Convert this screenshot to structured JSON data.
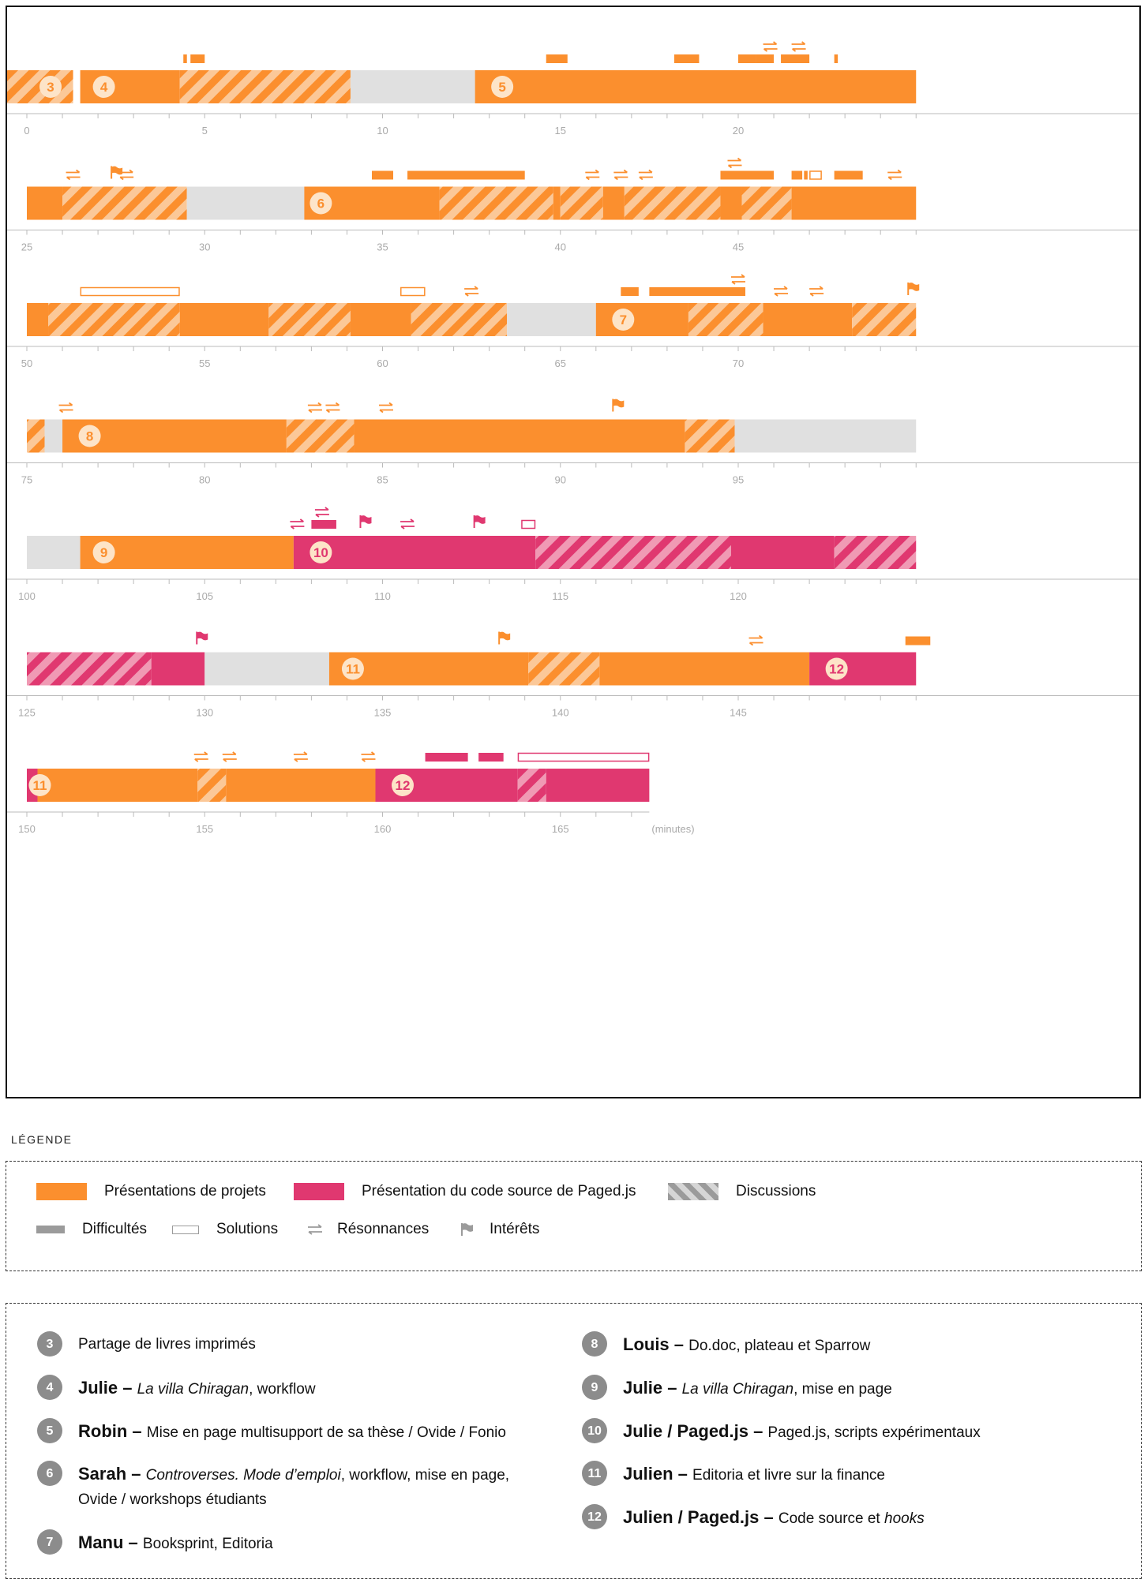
{
  "colors": {
    "orange": "#fb8f2e",
    "orange_stripe": "#fbc898",
    "pink": "#e03870",
    "pink_stripe": "#f09ab4",
    "gray": "#e0e0e0",
    "axis": "#bbbbbb",
    "legend_gray": "#9b9b9b"
  },
  "chart_data": {
    "type": "timeline",
    "x_unit_label": "(minutes)",
    "minutes_per_row": 25,
    "row_starts": [
      0,
      25,
      50,
      75,
      100,
      125,
      150
    ],
    "total_minutes": 167.5,
    "tick_labels_every": 5,
    "segments": [
      {
        "start": -0.8,
        "end": 1.3,
        "type": "discussion",
        "color": "orange"
      },
      {
        "start": 1.5,
        "end": 4.3,
        "type": "presentation",
        "color": "orange"
      },
      {
        "start": 4.3,
        "end": 9.1,
        "type": "discussion",
        "color": "orange"
      },
      {
        "start": 9.1,
        "end": 12.6,
        "type": "gap"
      },
      {
        "start": 12.6,
        "end": 25.0,
        "type": "presentation",
        "color": "orange"
      },
      {
        "start": 25.0,
        "end": 26.0,
        "type": "presentation",
        "color": "orange"
      },
      {
        "start": 26.0,
        "end": 29.5,
        "type": "discussion",
        "color": "orange"
      },
      {
        "start": 29.5,
        "end": 32.8,
        "type": "gap"
      },
      {
        "start": 32.8,
        "end": 36.6,
        "type": "presentation",
        "color": "orange"
      },
      {
        "start": 36.6,
        "end": 39.8,
        "type": "discussion",
        "color": "orange"
      },
      {
        "start": 39.8,
        "end": 40.0,
        "type": "presentation",
        "color": "orange"
      },
      {
        "start": 40.0,
        "end": 41.2,
        "type": "discussion",
        "color": "orange"
      },
      {
        "start": 41.2,
        "end": 41.8,
        "type": "presentation",
        "color": "orange"
      },
      {
        "start": 41.8,
        "end": 44.5,
        "type": "discussion",
        "color": "orange"
      },
      {
        "start": 44.5,
        "end": 45.1,
        "type": "presentation",
        "color": "orange"
      },
      {
        "start": 45.1,
        "end": 46.5,
        "type": "discussion",
        "color": "orange"
      },
      {
        "start": 46.5,
        "end": 50.0,
        "type": "presentation",
        "color": "orange"
      },
      {
        "start": 50.0,
        "end": 50.6,
        "type": "presentation",
        "color": "orange"
      },
      {
        "start": 50.6,
        "end": 54.3,
        "type": "discussion",
        "color": "orange"
      },
      {
        "start": 54.3,
        "end": 56.8,
        "type": "presentation",
        "color": "orange"
      },
      {
        "start": 56.8,
        "end": 59.1,
        "type": "discussion",
        "color": "orange"
      },
      {
        "start": 59.1,
        "end": 60.8,
        "type": "presentation",
        "color": "orange"
      },
      {
        "start": 60.8,
        "end": 63.5,
        "type": "discussion",
        "color": "orange"
      },
      {
        "start": 63.5,
        "end": 66.0,
        "type": "gap"
      },
      {
        "start": 66.0,
        "end": 68.6,
        "type": "presentation",
        "color": "orange"
      },
      {
        "start": 68.6,
        "end": 70.7,
        "type": "discussion",
        "color": "orange"
      },
      {
        "start": 70.7,
        "end": 73.2,
        "type": "presentation",
        "color": "orange"
      },
      {
        "start": 73.2,
        "end": 75.0,
        "type": "discussion",
        "color": "orange"
      },
      {
        "start": 75.0,
        "end": 75.5,
        "type": "discussion",
        "color": "orange"
      },
      {
        "start": 75.5,
        "end": 76.0,
        "type": "gap"
      },
      {
        "start": 76.0,
        "end": 82.3,
        "type": "presentation",
        "color": "orange"
      },
      {
        "start": 82.3,
        "end": 84.2,
        "type": "discussion",
        "color": "orange"
      },
      {
        "start": 84.2,
        "end": 93.5,
        "type": "presentation",
        "color": "orange"
      },
      {
        "start": 93.5,
        "end": 94.9,
        "type": "discussion",
        "color": "orange"
      },
      {
        "start": 94.9,
        "end": 100.0,
        "type": "gap"
      },
      {
        "start": 100.0,
        "end": 101.5,
        "type": "gap"
      },
      {
        "start": 101.5,
        "end": 107.5,
        "type": "presentation",
        "color": "orange"
      },
      {
        "start": 107.5,
        "end": 114.3,
        "type": "presentation",
        "color": "pink"
      },
      {
        "start": 114.3,
        "end": 119.8,
        "type": "discussion",
        "color": "pink"
      },
      {
        "start": 119.8,
        "end": 122.7,
        "type": "presentation",
        "color": "pink"
      },
      {
        "start": 122.7,
        "end": 125.0,
        "type": "discussion",
        "color": "pink"
      },
      {
        "start": 125.0,
        "end": 128.5,
        "type": "discussion",
        "color": "pink"
      },
      {
        "start": 128.5,
        "end": 130.0,
        "type": "presentation",
        "color": "pink"
      },
      {
        "start": 130.0,
        "end": 133.5,
        "type": "gap"
      },
      {
        "start": 133.5,
        "end": 139.1,
        "type": "presentation",
        "color": "orange"
      },
      {
        "start": 139.1,
        "end": 141.1,
        "type": "discussion",
        "color": "orange"
      },
      {
        "start": 141.1,
        "end": 147.0,
        "type": "presentation",
        "color": "orange"
      },
      {
        "start": 147.0,
        "end": 150.0,
        "type": "presentation",
        "color": "pink"
      },
      {
        "start": 150.0,
        "end": 150.3,
        "type": "presentation",
        "color": "pink"
      },
      {
        "start": 150.3,
        "end": 154.8,
        "type": "presentation",
        "color": "orange"
      },
      {
        "start": 154.8,
        "end": 155.6,
        "type": "discussion",
        "color": "orange"
      },
      {
        "start": 155.6,
        "end": 159.8,
        "type": "presentation",
        "color": "orange"
      },
      {
        "start": 159.8,
        "end": 163.8,
        "type": "presentation",
        "color": "pink"
      },
      {
        "start": 163.8,
        "end": 164.6,
        "type": "discussion",
        "color": "pink"
      },
      {
        "start": 164.6,
        "end": 167.5,
        "type": "presentation",
        "color": "pink"
      }
    ],
    "bubbles": [
      {
        "label": "3",
        "at": 0.4,
        "color": "orange"
      },
      {
        "label": "4",
        "at": 1.9,
        "color": "orange"
      },
      {
        "label": "5",
        "at": 13.1,
        "color": "orange"
      },
      {
        "label": "6",
        "at": 33.0,
        "color": "orange"
      },
      {
        "label": "7",
        "at": 66.5,
        "color": "orange"
      },
      {
        "label": "8",
        "at": 76.5,
        "color": "orange"
      },
      {
        "label": "9",
        "at": 101.9,
        "color": "orange"
      },
      {
        "label": "10",
        "at": 108.0,
        "color": "pink"
      },
      {
        "label": "11",
        "at": 133.9,
        "color": "orange"
      },
      {
        "label": "12",
        "at": 147.5,
        "color": "pink"
      },
      {
        "label": "11",
        "at": 150.1,
        "color": "orange"
      },
      {
        "label": "12",
        "at": 160.3,
        "color": "pink"
      }
    ],
    "markers": [
      {
        "kind": "difficulty",
        "start": 4.4,
        "end": 4.5,
        "color": "orange",
        "level": 0
      },
      {
        "kind": "difficulty",
        "start": 4.6,
        "end": 5.0,
        "color": "orange",
        "level": 0
      },
      {
        "kind": "difficulty",
        "start": 14.6,
        "end": 15.2,
        "color": "orange",
        "level": 0
      },
      {
        "kind": "difficulty",
        "start": 18.2,
        "end": 18.9,
        "color": "orange",
        "level": 0
      },
      {
        "kind": "difficulty",
        "start": 20.0,
        "end": 20.5,
        "color": "orange",
        "level": 0
      },
      {
        "kind": "difficulty",
        "start": 20.5,
        "end": 21.0,
        "color": "orange",
        "level": 0
      },
      {
        "kind": "resonance",
        "at": 20.9,
        "color": "orange",
        "level": 1
      },
      {
        "kind": "difficulty",
        "start": 21.2,
        "end": 22.0,
        "color": "orange",
        "level": 0
      },
      {
        "kind": "resonance",
        "at": 21.7,
        "color": "orange",
        "level": 1
      },
      {
        "kind": "difficulty",
        "start": 22.7,
        "end": 22.8,
        "color": "orange",
        "level": 0
      },
      {
        "kind": "resonance",
        "at": 26.3,
        "color": "orange",
        "level": 0
      },
      {
        "kind": "interest",
        "at": 27.4,
        "color": "orange",
        "level": 0
      },
      {
        "kind": "resonance",
        "at": 27.8,
        "color": "orange",
        "level": 0
      },
      {
        "kind": "difficulty",
        "start": 34.7,
        "end": 35.3,
        "color": "orange",
        "level": 0
      },
      {
        "kind": "difficulty",
        "start": 35.7,
        "end": 39.0,
        "color": "orange",
        "level": 0
      },
      {
        "kind": "resonance",
        "at": 40.9,
        "color": "orange",
        "level": 0
      },
      {
        "kind": "resonance",
        "at": 41.7,
        "color": "orange",
        "level": 0
      },
      {
        "kind": "resonance",
        "at": 42.4,
        "color": "orange",
        "level": 0
      },
      {
        "kind": "difficulty",
        "start": 44.5,
        "end": 46.0,
        "color": "orange",
        "level": 0
      },
      {
        "kind": "resonance",
        "at": 44.9,
        "color": "orange",
        "level": 1
      },
      {
        "kind": "difficulty",
        "start": 46.5,
        "end": 46.8,
        "color": "orange",
        "level": 0
      },
      {
        "kind": "difficulty",
        "start": 46.85,
        "end": 46.95,
        "color": "orange",
        "level": 0
      },
      {
        "kind": "solution",
        "start": 47.0,
        "end": 47.35,
        "color": "orange",
        "level": 0
      },
      {
        "kind": "difficulty",
        "start": 47.7,
        "end": 48.5,
        "color": "orange",
        "level": 0
      },
      {
        "kind": "resonance",
        "at": 49.4,
        "color": "orange",
        "level": 0
      },
      {
        "kind": "solution",
        "start": 51.5,
        "end": 54.3,
        "color": "orange",
        "level": 0
      },
      {
        "kind": "solution",
        "start": 60.5,
        "end": 61.2,
        "color": "orange",
        "level": 0
      },
      {
        "kind": "resonance",
        "at": 62.5,
        "color": "orange",
        "level": 0
      },
      {
        "kind": "difficulty",
        "start": 66.7,
        "end": 67.2,
        "color": "orange",
        "level": 0
      },
      {
        "kind": "difficulty",
        "start": 67.5,
        "end": 70.2,
        "color": "orange",
        "level": 0
      },
      {
        "kind": "resonance",
        "at": 70.0,
        "color": "orange",
        "level": 1
      },
      {
        "kind": "resonance",
        "at": 71.2,
        "color": "orange",
        "level": 0
      },
      {
        "kind": "resonance",
        "at": 72.2,
        "color": "orange",
        "level": 0
      },
      {
        "kind": "interest",
        "at": 74.8,
        "color": "orange",
        "level": 0
      },
      {
        "kind": "resonance",
        "at": 76.1,
        "color": "orange",
        "level": 0
      },
      {
        "kind": "resonance",
        "at": 83.1,
        "color": "orange",
        "level": 0
      },
      {
        "kind": "resonance",
        "at": 83.6,
        "color": "orange",
        "level": 0
      },
      {
        "kind": "resonance",
        "at": 85.1,
        "color": "orange",
        "level": 0
      },
      {
        "kind": "interest",
        "at": 91.5,
        "color": "orange",
        "level": 0
      },
      {
        "kind": "resonance",
        "at": 107.6,
        "color": "pink",
        "level": 0
      },
      {
        "kind": "resonance",
        "at": 108.3,
        "color": "pink",
        "level": 1
      },
      {
        "kind": "difficulty",
        "start": 108.0,
        "end": 108.7,
        "color": "pink",
        "level": 0
      },
      {
        "kind": "interest",
        "at": 109.4,
        "color": "pink",
        "level": 0
      },
      {
        "kind": "resonance",
        "at": 110.7,
        "color": "pink",
        "level": 0
      },
      {
        "kind": "interest",
        "at": 112.6,
        "color": "pink",
        "level": 0
      },
      {
        "kind": "solution",
        "start": 113.9,
        "end": 114.3,
        "color": "pink",
        "level": 0
      },
      {
        "kind": "interest",
        "at": 129.8,
        "color": "pink",
        "level": 0
      },
      {
        "kind": "interest",
        "at": 138.3,
        "color": "orange",
        "level": 0
      },
      {
        "kind": "resonance",
        "at": 145.5,
        "color": "orange",
        "level": 0
      },
      {
        "kind": "difficulty",
        "start": 149.7,
        "end": 150.4,
        "color": "orange",
        "level": 0
      },
      {
        "kind": "resonance",
        "at": 154.9,
        "color": "orange",
        "level": 0
      },
      {
        "kind": "resonance",
        "at": 155.7,
        "color": "orange",
        "level": 0
      },
      {
        "kind": "resonance",
        "at": 157.7,
        "color": "orange",
        "level": 0
      },
      {
        "kind": "resonance",
        "at": 159.6,
        "color": "orange",
        "level": 0
      },
      {
        "kind": "difficulty",
        "start": 161.2,
        "end": 162.4,
        "color": "pink",
        "level": 0
      },
      {
        "kind": "difficulty",
        "start": 162.7,
        "end": 163.4,
        "color": "pink",
        "level": 0
      },
      {
        "kind": "solution",
        "start": 163.8,
        "end": 167.5,
        "color": "pink",
        "level": 0
      }
    ]
  },
  "legend": {
    "title": "LÉGENDE",
    "items": [
      {
        "key": "presentation_projets",
        "label": "Présentations de projets",
        "swatch": "orange"
      },
      {
        "key": "presentation_code",
        "label": "Présentation du code source de Paged.js",
        "swatch": "pink"
      },
      {
        "key": "discussions",
        "label": "Discussions",
        "swatch": "stripes"
      },
      {
        "key": "difficultes",
        "label": "Difficultés",
        "swatch": "bar"
      },
      {
        "key": "solutions",
        "label": "Solutions",
        "swatch": "outline"
      },
      {
        "key": "resonances",
        "label": "Résonnances",
        "swatch": "arrows"
      },
      {
        "key": "interets",
        "label": "Intérêts",
        "swatch": "flag"
      }
    ]
  },
  "people_left": [
    {
      "num": "3",
      "name": "",
      "sep": "",
      "parts": [
        {
          "t": "Partage de livres imprimés"
        }
      ]
    },
    {
      "num": "4",
      "name": "Julie",
      "sep": " – ",
      "parts": [
        {
          "t": "La villa Chiragan",
          "i": true
        },
        {
          "t": ", workflow"
        }
      ]
    },
    {
      "num": "5",
      "name": "Robin",
      "sep": " – ",
      "parts": [
        {
          "t": "Mise en page multisupport de sa thèse / Ovide / Fonio"
        }
      ]
    },
    {
      "num": "6",
      "name": "Sarah",
      "sep": " – ",
      "parts": [
        {
          "t": "Controverses. Mode d’emploi",
          "i": true
        },
        {
          "t": ", workflow, mise en page, Ovide / workshops étudiants"
        }
      ]
    },
    {
      "num": "7",
      "name": "Manu",
      "sep": " – ",
      "parts": [
        {
          "t": "Booksprint, Editoria"
        }
      ]
    }
  ],
  "people_right": [
    {
      "num": "8",
      "name": "Louis",
      "sep": " – ",
      "parts": [
        {
          "t": "Do.doc, plateau et Sparrow"
        }
      ]
    },
    {
      "num": "9",
      "name": "Julie",
      "sep": " – ",
      "parts": [
        {
          "t": "La villa Chiragan",
          "i": true
        },
        {
          "t": ", mise en page"
        }
      ]
    },
    {
      "num": "10",
      "name": "Julie / Paged.js",
      "sep": " – ",
      "parts": [
        {
          "t": "Paged.js, scripts expérimentaux"
        }
      ]
    },
    {
      "num": "11",
      "name": "Julien",
      "sep": " – ",
      "parts": [
        {
          "t": "Editoria et livre sur la finance"
        }
      ]
    },
    {
      "num": "12",
      "name": "Julien / Paged.js",
      "sep": " – ",
      "parts": [
        {
          "t": "Code source et "
        },
        {
          "t": "hooks",
          "i": true
        }
      ]
    }
  ]
}
